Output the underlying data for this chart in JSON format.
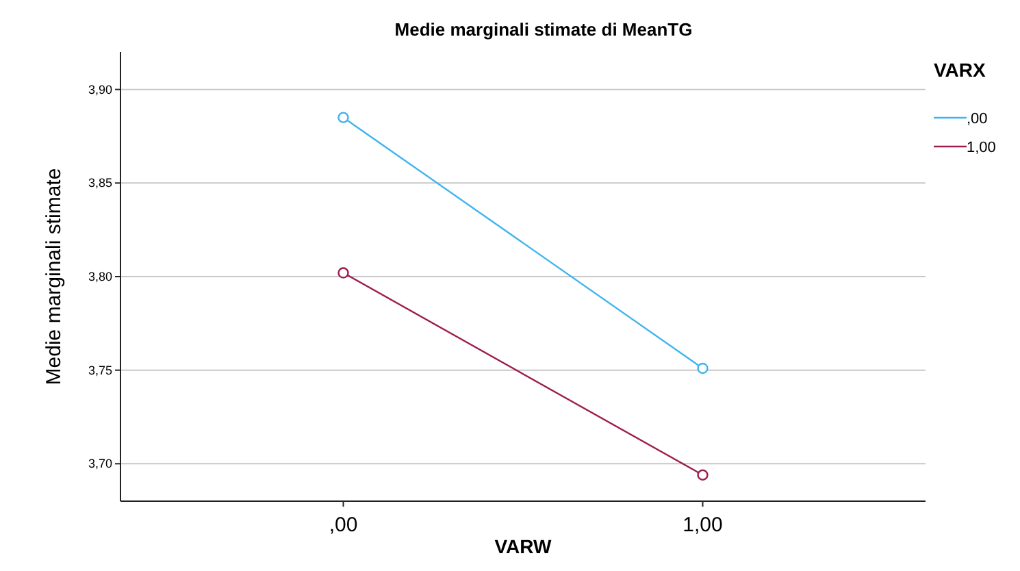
{
  "chart_data": {
    "type": "line",
    "title": "Medie marginali stimate di MeanTG",
    "xlabel": "VARW",
    "ylabel": "Medie marginali stimate",
    "legend_title": "VARX",
    "categories": [
      ",00",
      "1,00"
    ],
    "series": [
      {
        "name": ",00",
        "color": "#3fb4f0",
        "values": [
          3.885,
          3.751
        ]
      },
      {
        "name": "1,00",
        "color": "#9e1d4f",
        "values": [
          3.802,
          3.694
        ]
      }
    ],
    "ylim": [
      3.68,
      3.92
    ],
    "yticks": [
      {
        "value": 3.7,
        "label": "3,70"
      },
      {
        "value": 3.75,
        "label": "3,75"
      },
      {
        "value": 3.8,
        "label": "3,80"
      },
      {
        "value": 3.85,
        "label": "3,85"
      },
      {
        "value": 3.9,
        "label": "3,90"
      }
    ],
    "grid": "y",
    "legend": "right",
    "marker": "circle",
    "line_style": "solid"
  }
}
